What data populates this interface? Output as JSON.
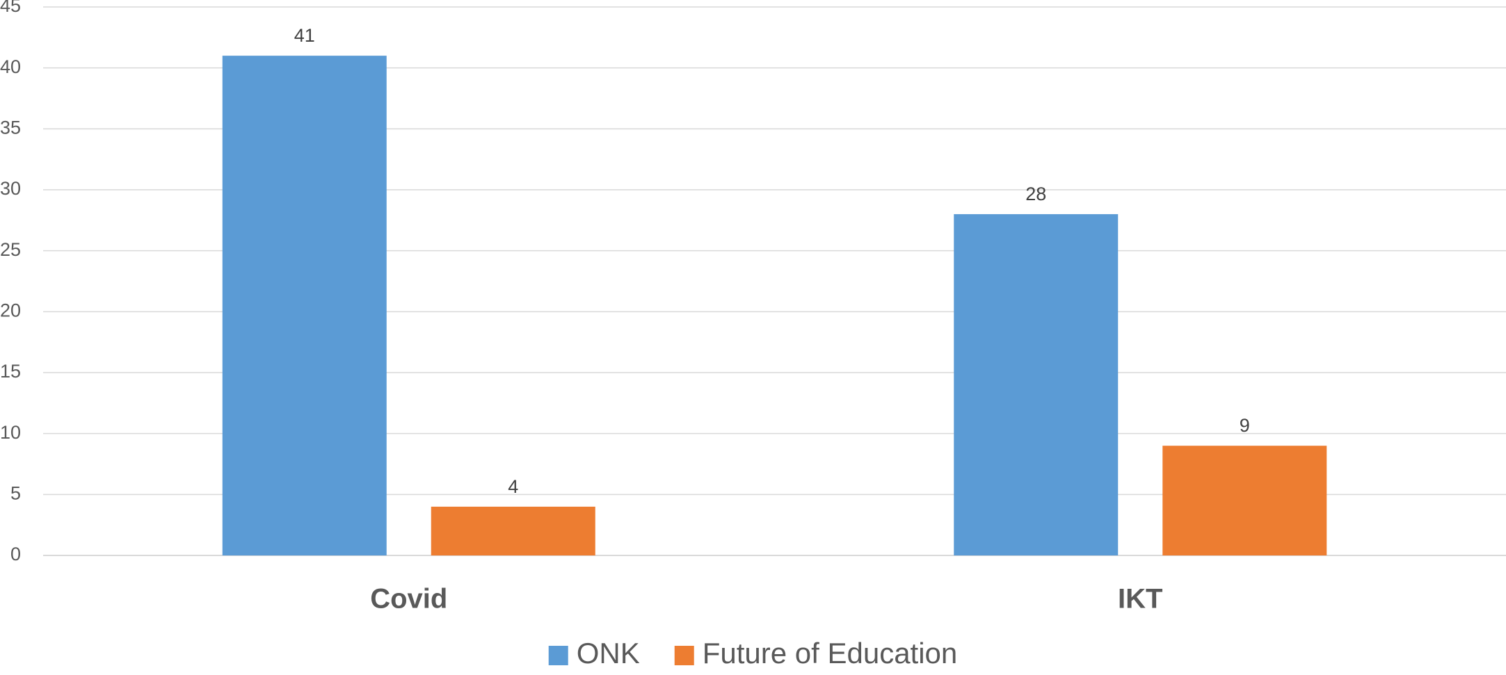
{
  "chart_data": {
    "type": "bar",
    "title": "",
    "xlabel": "",
    "ylabel": "",
    "categories": [
      "Covid",
      "IKT"
    ],
    "series": [
      {
        "name": "ONK",
        "values": [
          41,
          28
        ],
        "color": "#5b9bd5"
      },
      {
        "name": "Future of Education",
        "values": [
          4,
          9
        ],
        "color": "#ed7d31"
      }
    ],
    "ylim": [
      0,
      45
    ],
    "yticks": [
      0,
      5,
      10,
      15,
      20,
      25,
      30,
      35,
      40,
      45
    ],
    "grid": true,
    "data_labels": true,
    "legend_position": "bottom-center"
  }
}
